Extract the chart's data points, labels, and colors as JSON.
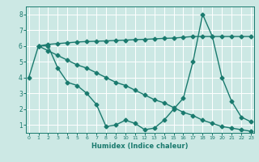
{
  "line1_x": [
    1,
    2,
    3,
    4,
    5,
    6,
    7,
    8,
    9,
    10,
    11,
    12,
    13,
    14,
    15,
    16,
    17,
    18,
    19,
    20,
    21,
    22,
    23
  ],
  "line1_y": [
    6.0,
    6.1,
    6.15,
    6.2,
    6.25,
    6.28,
    6.3,
    6.32,
    6.35,
    6.37,
    6.4,
    6.42,
    6.45,
    6.48,
    6.5,
    6.55,
    6.6,
    6.6,
    6.6,
    6.6,
    6.6,
    6.6,
    6.6
  ],
  "line2_x": [
    0,
    1,
    2,
    3,
    4,
    5,
    6,
    7,
    8,
    9,
    10,
    11,
    12,
    13,
    14,
    15,
    16,
    17,
    18,
    19,
    20,
    21,
    22,
    23
  ],
  "line2_y": [
    4.0,
    6.0,
    6.0,
    4.6,
    3.7,
    3.5,
    3.0,
    2.3,
    0.9,
    1.0,
    1.3,
    1.1,
    0.7,
    0.8,
    1.3,
    2.0,
    2.7,
    5.0,
    8.0,
    6.6,
    4.0,
    2.5,
    1.5,
    1.2
  ],
  "line3_x": [
    1,
    2,
    3,
    4,
    5,
    6,
    7,
    8,
    9,
    10,
    11,
    12,
    13,
    14,
    15,
    16,
    17,
    18,
    19,
    20,
    21,
    22,
    23
  ],
  "line3_y": [
    6.0,
    5.7,
    5.4,
    5.1,
    4.8,
    4.6,
    4.3,
    4.0,
    3.7,
    3.5,
    3.2,
    2.9,
    2.6,
    2.4,
    2.1,
    1.8,
    1.6,
    1.3,
    1.1,
    0.9,
    0.8,
    0.7,
    0.6
  ],
  "color": "#1a7a6e",
  "bg_color": "#cce8e4",
  "grid_color": "#ffffff",
  "xlim": [
    -0.3,
    23.3
  ],
  "ylim": [
    0.5,
    8.5
  ],
  "yticks": [
    1,
    2,
    3,
    4,
    5,
    6,
    7,
    8
  ],
  "xticks": [
    0,
    1,
    2,
    3,
    4,
    5,
    6,
    7,
    8,
    9,
    10,
    11,
    12,
    13,
    14,
    15,
    16,
    17,
    18,
    19,
    20,
    21,
    22,
    23
  ],
  "xlabel": "Humidex (Indice chaleur)",
  "marker": "D",
  "markersize": 2.5,
  "linewidth": 1.0
}
